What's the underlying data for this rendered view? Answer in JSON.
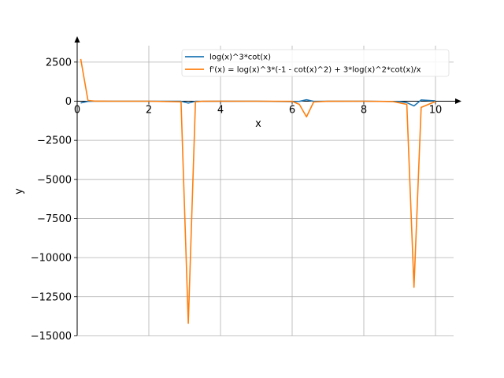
{
  "chart_data": {
    "type": "line",
    "xlabel": "x",
    "ylabel": "y",
    "xlim": [
      0,
      10.5
    ],
    "ylim": [
      -15000,
      3600
    ],
    "xticks": [
      0,
      2,
      4,
      6,
      8,
      10
    ],
    "yticks": [
      2500,
      0,
      -2500,
      -5000,
      -7500,
      -10000,
      -12500,
      -15000
    ],
    "ytick_labels": [
      "2500",
      "0",
      "−2500",
      "−5000",
      "−7500",
      "−10000",
      "−12500",
      "−15000"
    ],
    "grid": true,
    "legend_position": "top-right",
    "series": [
      {
        "name": "log(x)^3*cot(x)",
        "color": "#1f77b4",
        "x": [
          0.1,
          0.3,
          0.5,
          1.0,
          1.5,
          2.0,
          2.5,
          2.9,
          3.1,
          3.3,
          3.5,
          4.0,
          5.0,
          6.0,
          6.2,
          6.4,
          6.6,
          7.0,
          8.0,
          9.0,
          9.2,
          9.4,
          9.6,
          10.0
        ],
        "values": [
          -110,
          -9,
          -1,
          0,
          0,
          0,
          -1,
          -5,
          -120,
          -6,
          -8,
          -3,
          -1,
          -30,
          -10,
          90,
          -10,
          -3,
          0,
          -20,
          -90,
          -300,
          80,
          20
        ]
      },
      {
        "name": "f'(x) = log(x)^3*(-1 - cot(x)^2) + 3*log(x)^2*cot(x)/x",
        "color": "#ff7f0e",
        "x": [
          0.1,
          0.3,
          0.5,
          1.0,
          2.0,
          2.9,
          3.1,
          3.3,
          3.5,
          4.0,
          5.0,
          6.0,
          6.2,
          6.4,
          6.6,
          7.0,
          8.0,
          8.8,
          9.2,
          9.4,
          9.6,
          10.0
        ],
        "values": [
          2700,
          50,
          5,
          0,
          0,
          -40,
          -14200,
          -40,
          -5,
          0,
          0,
          -10,
          -200,
          -1000,
          -50,
          -5,
          0,
          -20,
          -200,
          -11900,
          -400,
          -20
        ]
      }
    ]
  }
}
